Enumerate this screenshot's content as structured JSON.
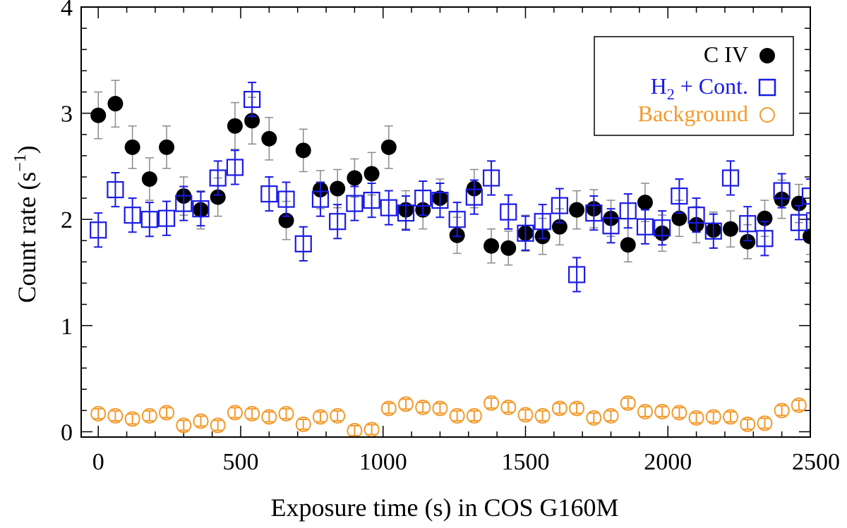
{
  "chart_data": {
    "type": "scatter",
    "title": "",
    "xlabel": "Exposure time (s) in COS G160M",
    "ylabel_main": "Count rate (s",
    "ylabel_sup": "−1",
    "ylabel_close": ")",
    "xlim": [
      -60,
      2500
    ],
    "ylim": [
      -0.05,
      4
    ],
    "xticks": [
      0,
      500,
      1000,
      1500,
      2000,
      2500
    ],
    "xtick_labels": [
      "0",
      "500",
      "1000",
      "1500",
      "2000",
      "2500"
    ],
    "yticks": [
      0,
      1,
      2,
      3,
      4
    ],
    "ytick_labels": [
      "0",
      "1",
      "2",
      "3",
      "4"
    ],
    "legend_position": "top-right",
    "colors": {
      "civ": "#000000",
      "civ_err": "#8a8a8a",
      "h2": "#1a1ae6",
      "bg": "#f39a2b"
    },
    "series": [
      {
        "key": "civ",
        "name": "C IV",
        "marker": "filled-circle",
        "x": [
          0,
          60,
          120,
          180,
          240,
          300,
          360,
          420,
          480,
          540,
          600,
          660,
          720,
          780,
          840,
          900,
          960,
          1020,
          1080,
          1140,
          1200,
          1260,
          1320,
          1380,
          1440,
          1500,
          1560,
          1620,
          1680,
          1740,
          1800,
          1860,
          1920,
          1980,
          2040,
          2100,
          2160,
          2220,
          2280,
          2340,
          2400,
          2460,
          2500
        ],
        "y": [
          2.98,
          3.09,
          2.68,
          2.38,
          2.68,
          2.22,
          2.09,
          2.21,
          2.88,
          2.93,
          2.76,
          1.99,
          2.65,
          2.28,
          2.29,
          2.39,
          2.43,
          2.68,
          2.09,
          2.09,
          2.2,
          1.85,
          2.29,
          1.75,
          1.73,
          1.87,
          1.84,
          1.93,
          2.09,
          2.1,
          2.01,
          1.76,
          2.16,
          1.87,
          2.01,
          1.95,
          1.9,
          1.91,
          1.79,
          2.01,
          2.19,
          2.15,
          1.84
        ],
        "err": [
          0.22,
          0.22,
          0.2,
          0.2,
          0.2,
          0.18,
          0.18,
          0.18,
          0.22,
          0.22,
          0.2,
          0.18,
          0.2,
          0.18,
          0.18,
          0.18,
          0.2,
          0.2,
          0.18,
          0.18,
          0.18,
          0.17,
          0.18,
          0.16,
          0.16,
          0.17,
          0.17,
          0.17,
          0.18,
          0.18,
          0.17,
          0.16,
          0.18,
          0.17,
          0.17,
          0.17,
          0.17,
          0.17,
          0.16,
          0.17,
          0.18,
          0.18,
          0.17
        ]
      },
      {
        "key": "h2",
        "name": "H",
        "name_sub": "2",
        "name_rest": " + Cont.",
        "marker": "open-square",
        "x": [
          0,
          60,
          120,
          180,
          240,
          300,
          360,
          420,
          480,
          540,
          600,
          660,
          720,
          780,
          840,
          900,
          960,
          1020,
          1080,
          1140,
          1200,
          1260,
          1320,
          1380,
          1440,
          1500,
          1560,
          1620,
          1680,
          1740,
          1800,
          1860,
          1920,
          1980,
          2040,
          2100,
          2160,
          2220,
          2280,
          2340,
          2400,
          2460,
          2500
        ],
        "y": [
          1.9,
          2.28,
          2.04,
          2.0,
          2.01,
          2.15,
          2.1,
          2.39,
          2.49,
          3.13,
          2.24,
          2.19,
          1.77,
          2.19,
          1.98,
          2.15,
          2.18,
          2.11,
          2.06,
          2.2,
          2.18,
          2.0,
          2.21,
          2.39,
          2.07,
          1.87,
          1.98,
          2.13,
          1.48,
          2.06,
          1.94,
          2.08,
          1.93,
          1.92,
          2.22,
          2.04,
          1.89,
          2.39,
          1.96,
          1.82,
          2.27,
          1.97,
          2.22
        ]
      },
      {
        "key": "bg",
        "name": "Background",
        "marker": "open-circle",
        "x": [
          0,
          60,
          120,
          180,
          240,
          300,
          360,
          420,
          480,
          540,
          600,
          660,
          720,
          780,
          840,
          900,
          960,
          1020,
          1080,
          1140,
          1200,
          1260,
          1320,
          1380,
          1440,
          1500,
          1560,
          1620,
          1680,
          1740,
          1800,
          1860,
          1920,
          1980,
          2040,
          2100,
          2160,
          2220,
          2280,
          2340,
          2400,
          2460
        ],
        "y": [
          0.17,
          0.15,
          0.12,
          0.15,
          0.18,
          0.06,
          0.1,
          0.06,
          0.18,
          0.17,
          0.14,
          0.17,
          0.07,
          0.14,
          0.15,
          0.01,
          0.02,
          0.22,
          0.26,
          0.23,
          0.22,
          0.15,
          0.15,
          0.27,
          0.23,
          0.16,
          0.15,
          0.22,
          0.22,
          0.13,
          0.15,
          0.27,
          0.19,
          0.19,
          0.18,
          0.13,
          0.14,
          0.14,
          0.07,
          0.08,
          0.2,
          0.25
        ]
      }
    ]
  }
}
